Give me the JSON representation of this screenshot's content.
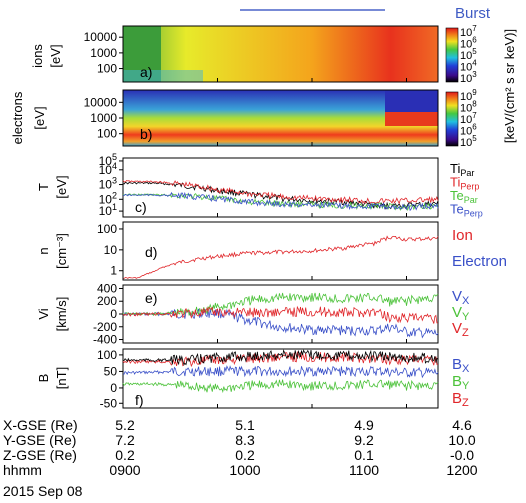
{
  "labels": {
    "burst": "Burst",
    "ions": "ions",
    "electrons": "electrons",
    "ev": "[eV]",
    "panel_a": "a)",
    "panel_b": "b)",
    "panel_c": "c)",
    "panel_d": "d)",
    "panel_e": "e)",
    "panel_f": "f)",
    "t": "T",
    "n": "n",
    "cm3": "[cm⁻³]",
    "vi": "Vi",
    "kms": "[km/s]",
    "b": "B",
    "nt": "[nT]",
    "colorbar_unit": "[keV/(cm² s sr keV)]"
  },
  "colors": {
    "black": "#000000",
    "red": "#e0262a",
    "green": "#4cc23a",
    "blue": "#3a50c8"
  },
  "chart_data": [
    {
      "type": "heatmap",
      "panel": "a",
      "ylabel": "ions [eV]",
      "yscale": "log",
      "yticks": [
        "10000",
        "1000",
        "100"
      ],
      "colorbar": {
        "scale": "log",
        "ticks": [
          "10^7",
          "10^6",
          "10^5",
          "10^4",
          "10^3"
        ]
      }
    },
    {
      "type": "heatmap",
      "panel": "b",
      "ylabel": "electrons [eV]",
      "yscale": "log",
      "yticks": [
        "10000",
        "1000",
        "100"
      ],
      "colorbar": {
        "scale": "log",
        "ticks": [
          "10^9",
          "10^8",
          "10^7",
          "10^6",
          "10^5"
        ]
      }
    },
    {
      "type": "line",
      "panel": "c",
      "ylabel": "T [eV]",
      "yscale": "log",
      "yticks": [
        "10^5",
        "10^4",
        "10^3",
        "10^2",
        "10^1"
      ],
      "legend": [
        "TiPar",
        "TiPerp",
        "TePar",
        "TePerp"
      ],
      "x_minutes": [
        0,
        20,
        40,
        60,
        80,
        100,
        120,
        140,
        160,
        180,
        200
      ],
      "series": [
        {
          "name": "TiPar",
          "color": "#000000",
          "values": [
            2500,
            2500,
            1500,
            600,
            300,
            150,
            100,
            80,
            40,
            40,
            60
          ]
        },
        {
          "name": "TiPerp",
          "color": "#e0262a",
          "values": [
            3500,
            3200,
            1800,
            700,
            350,
            200,
            150,
            120,
            90,
            100,
            120
          ]
        },
        {
          "name": "TePar",
          "color": "#4cc23a",
          "values": [
            300,
            300,
            250,
            150,
            80,
            60,
            50,
            40,
            40,
            30,
            40
          ]
        },
        {
          "name": "TePerp",
          "color": "#3a50c8",
          "values": [
            280,
            280,
            230,
            140,
            75,
            55,
            48,
            38,
            38,
            28,
            38
          ]
        }
      ]
    },
    {
      "type": "line",
      "panel": "d",
      "ylabel": "n [cm-3]",
      "yscale": "log",
      "yticks": [
        "100",
        "10",
        "1"
      ],
      "legend": [
        "Ion",
        "Electron"
      ],
      "x_minutes": [
        0,
        10,
        20,
        30,
        40,
        60,
        80,
        100,
        120,
        140,
        160,
        170,
        180,
        200
      ],
      "series": [
        {
          "name": "Ion",
          "color": "#e0262a",
          "values": [
            0.5,
            0.5,
            1.0,
            2.0,
            3.0,
            5.0,
            7.0,
            8.0,
            9.0,
            12.0,
            20.0,
            40.0,
            30.0,
            35.0
          ]
        }
      ]
    },
    {
      "type": "line",
      "panel": "e",
      "ylabel": "Vi [km/s]",
      "yticks": [
        "400",
        "200",
        "0",
        "-200",
        "-400"
      ],
      "legend": [
        "VX",
        "VY",
        "VZ"
      ],
      "x_minutes": [
        0,
        20,
        40,
        60,
        80,
        100,
        120,
        140,
        160,
        170,
        180,
        200
      ],
      "series": [
        {
          "name": "VX",
          "color": "#3a50c8",
          "values": [
            0,
            0,
            0,
            20,
            -100,
            -200,
            -240,
            -250,
            -260,
            -200,
            -280,
            -300
          ]
        },
        {
          "name": "VY",
          "color": "#4cc23a",
          "values": [
            0,
            0,
            20,
            100,
            200,
            250,
            260,
            230,
            250,
            180,
            200,
            250
          ]
        },
        {
          "name": "VZ",
          "color": "#e0262a",
          "values": [
            -10,
            0,
            10,
            30,
            20,
            30,
            40,
            20,
            30,
            -50,
            -60,
            -80
          ]
        }
      ]
    },
    {
      "type": "line",
      "panel": "f",
      "ylabel": "B [nT]",
      "yticks": [
        "100",
        "50",
        "0",
        "-50"
      ],
      "legend": [
        "BX",
        "BY",
        "BZ"
      ],
      "x_minutes": [
        0,
        20,
        40,
        60,
        80,
        100,
        120,
        140,
        160,
        180,
        200
      ],
      "series": [
        {
          "name": "BX",
          "color": "#3a50c8",
          "values": [
            40,
            42,
            45,
            45,
            45,
            45,
            45,
            45,
            45,
            40,
            40
          ]
        },
        {
          "name": "BY",
          "color": "#4cc23a",
          "values": [
            5,
            5,
            0,
            -10,
            0,
            5,
            0,
            0,
            5,
            0,
            0
          ]
        },
        {
          "name": "BZ",
          "color": "#e0262a",
          "values": [
            75,
            75,
            75,
            80,
            85,
            90,
            90,
            88,
            85,
            80,
            78
          ]
        },
        {
          "name": "Btot",
          "color": "#000000",
          "values": [
            80,
            80,
            80,
            88,
            92,
            97,
            97,
            95,
            92,
            88,
            85
          ]
        }
      ]
    }
  ],
  "time_axis": {
    "rows": [
      {
        "label": "X-GSE (Re)",
        "values": [
          "5.2",
          "5.1",
          "4.9",
          "4.6"
        ]
      },
      {
        "label": "Y-GSE (Re)",
        "values": [
          "7.2",
          "8.3",
          "9.2",
          "10.0"
        ]
      },
      {
        "label": "Z-GSE (Re)",
        "values": [
          "0.2",
          "0.2",
          "0.1",
          "-0.0"
        ]
      },
      {
        "label": "hhmm",
        "values": [
          "0900",
          "1000",
          "1100",
          "1200"
        ]
      }
    ],
    "date": "2015 Sep 08",
    "tick_minutes": [
      0,
      60,
      120,
      180
    ],
    "total_minutes": 200
  }
}
